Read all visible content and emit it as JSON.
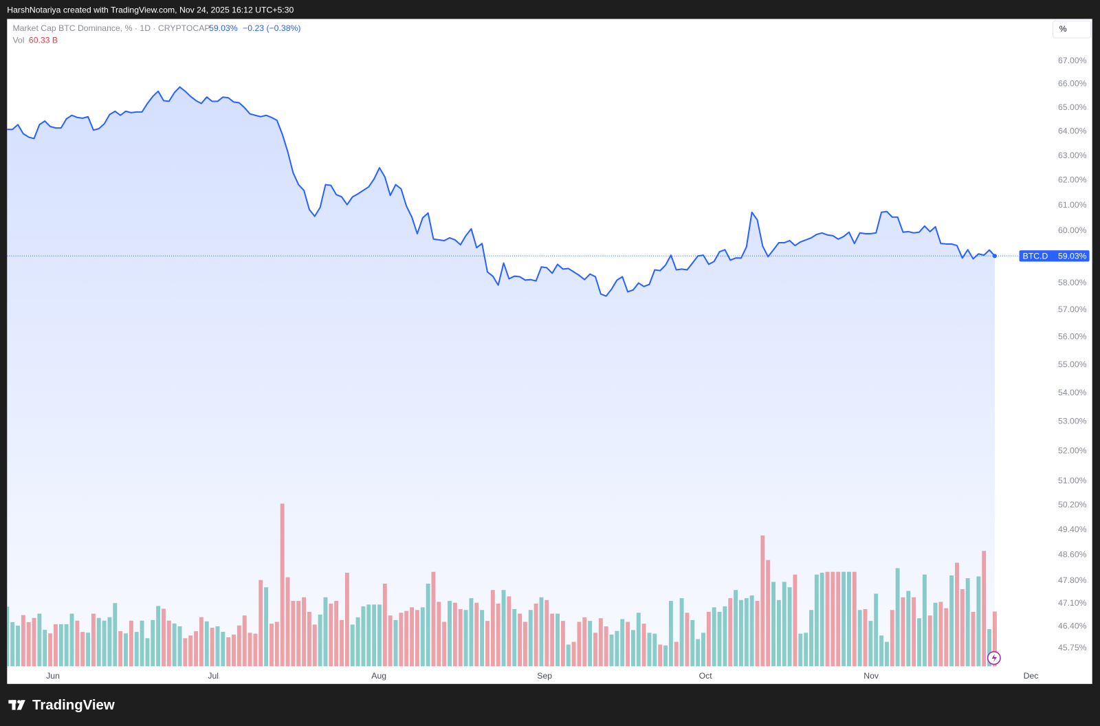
{
  "header": {
    "attribution": "HarshNotariya created with TradingView.com, Nov 24, 2025 16:12 UTC+5:30",
    "brand": "TradingView",
    "scale_button": "%"
  },
  "chart_data": {
    "type": "line",
    "title": "Market Cap BTC Dominance, % · 1D · CRYPTOCAP",
    "last_value_label": "59.03%",
    "change_label": "−0.23 (−0.38%)",
    "symbol": "BTC.D",
    "color": "#2962ff",
    "log_scale": true,
    "grid": false,
    "values": [
      64.09,
      64.09,
      64.29,
      63.91,
      63.77,
      63.71,
      64.29,
      64.44,
      64.21,
      64.15,
      64.15,
      64.53,
      64.68,
      64.59,
      64.56,
      64.62,
      64.06,
      64.12,
      64.32,
      64.71,
      64.85,
      64.68,
      64.85,
      64.79,
      64.82,
      64.82,
      65.18,
      65.48,
      65.7,
      65.3,
      65.27,
      65.64,
      65.88,
      65.7,
      65.48,
      65.3,
      65.18,
      65.45,
      65.27,
      65.27,
      65.45,
      65.42,
      65.24,
      65.21,
      65.0,
      64.74,
      64.68,
      64.62,
      64.68,
      64.59,
      64.47,
      63.89,
      63.17,
      62.31,
      61.83,
      61.6,
      60.84,
      60.57,
      60.92,
      61.83,
      61.8,
      61.43,
      61.34,
      61.03,
      61.34,
      61.46,
      61.6,
      61.74,
      62.06,
      62.51,
      62.14,
      61.4,
      61.83,
      61.66,
      60.97,
      60.54,
      59.89,
      60.51,
      60.7,
      59.68,
      59.65,
      59.62,
      59.73,
      59.65,
      59.46,
      59.81,
      60.08,
      59.35,
      59.51,
      58.42,
      58.26,
      57.92,
      58.76,
      58.16,
      58.26,
      58.24,
      58.11,
      58.13,
      58.08,
      58.61,
      58.58,
      58.37,
      58.71,
      58.53,
      58.55,
      58.42,
      58.29,
      58.13,
      58.34,
      58.24,
      57.59,
      57.51,
      57.77,
      58.11,
      58.24,
      57.67,
      57.74,
      58.0,
      57.87,
      57.95,
      58.5,
      58.47,
      58.68,
      59.06,
      58.5,
      58.53,
      58.5,
      58.76,
      59.03,
      59.06,
      58.71,
      58.82,
      59.19,
      59.27,
      58.87,
      58.95,
      58.95,
      59.38,
      60.73,
      60.43,
      59.41,
      59.0,
      59.27,
      59.54,
      59.54,
      59.62,
      59.43,
      59.57,
      59.65,
      59.73,
      59.86,
      59.92,
      59.84,
      59.81,
      59.68,
      59.78,
      59.95,
      59.51,
      59.92,
      59.89,
      59.89,
      59.92,
      60.73,
      60.76,
      60.54,
      60.54,
      59.95,
      59.97,
      59.92,
      59.95,
      60.19,
      59.97,
      60.16,
      59.51,
      59.49,
      59.49,
      59.43,
      58.95,
      59.27,
      58.92,
      59.11,
      59.06,
      59.26,
      59.03
    ],
    "xlim": [
      0,
      193
    ],
    "xticks": [
      {
        "value": 8.5,
        "label": "Jun"
      },
      {
        "value": 38.2,
        "label": "Jul"
      },
      {
        "value": 68.9,
        "label": "Aug"
      },
      {
        "value": 99.6,
        "label": "Sep"
      },
      {
        "value": 129.4,
        "label": "Oct"
      },
      {
        "value": 160.1,
        "label": "Nov"
      },
      {
        "value": 189.7,
        "label": "Dec"
      }
    ],
    "ylim": [
      45.21,
      68.86
    ],
    "yticks": [
      {
        "value": 67,
        "label": "67.00%"
      },
      {
        "value": 66,
        "label": "66.00%"
      },
      {
        "value": 65,
        "label": "65.00%"
      },
      {
        "value": 64,
        "label": "64.00%"
      },
      {
        "value": 63,
        "label": "63.00%"
      },
      {
        "value": 62,
        "label": "62.00%"
      },
      {
        "value": 61,
        "label": "61.00%"
      },
      {
        "value": 60,
        "label": "60.00%"
      },
      {
        "value": 58,
        "label": "58.00%"
      },
      {
        "value": 57,
        "label": "57.00%"
      },
      {
        "value": 56,
        "label": "56.00%"
      },
      {
        "value": 55,
        "label": "55.00%"
      },
      {
        "value": 54,
        "label": "54.00%"
      },
      {
        "value": 53,
        "label": "53.00%"
      },
      {
        "value": 52,
        "label": "52.00%"
      },
      {
        "value": 51,
        "label": "51.00%"
      },
      {
        "value": 50.2,
        "label": "50.20%"
      },
      {
        "value": 49.4,
        "label": "49.40%"
      },
      {
        "value": 48.6,
        "label": "48.60%"
      },
      {
        "value": 47.8,
        "label": "47.80%"
      },
      {
        "value": 47.1,
        "label": "47.10%"
      },
      {
        "value": 46.4,
        "label": "46.40%"
      },
      {
        "value": 45.75,
        "label": "45.75%"
      }
    ],
    "volume": {
      "name": "Vol",
      "value_label": "60.33 B",
      "up_color": "#8dd0c8",
      "down_color": "#f4a4a4",
      "values": [
        65.7,
        48.7,
        44.8,
        56.4,
        48.7,
        53.3,
        58.0,
        40.2,
        36.3,
        46.4,
        46.4,
        46.4,
        58.0,
        50.3,
        37.9,
        37.1,
        58.0,
        53.3,
        50.3,
        54.1,
        69.6,
        38.7,
        36.3,
        50.3,
        37.9,
        50.3,
        31.0,
        51.0,
        66.5,
        63.4,
        50.3,
        47.2,
        44.1,
        31.0,
        34.0,
        38.7,
        54.1,
        49.5,
        42.5,
        44.1,
        38,
        32,
        35,
        45,
        56,
        37,
        36,
        95,
        87,
        47,
        49,
        179,
        98,
        72,
        72,
        76,
        60,
        46,
        57,
        76,
        69,
        72,
        51,
        103,
        46,
        54,
        66,
        68,
        68,
        68,
        91,
        56,
        51,
        59,
        61,
        65,
        62,
        65,
        91,
        104,
        71,
        49,
        72,
        70,
        63,
        62,
        75,
        70,
        62,
        50,
        84,
        69,
        84,
        77,
        63,
        58,
        49,
        62,
        69,
        76,
        73,
        58,
        58,
        50,
        24,
        27,
        49,
        54,
        50,
        37,
        53,
        44,
        35,
        39,
        52,
        49,
        40,
        59,
        47,
        37,
        36,
        24,
        23,
        72,
        27,
        75,
        59,
        51,
        30,
        37,
        60,
        65,
        60,
        66,
        75,
        84,
        73,
        75,
        78,
        72,
        144,
        117,
        93,
        73,
        93,
        87,
        101,
        36,
        37,
        62,
        101,
        103,
        104,
        104,
        104,
        104,
        104,
        104,
        62,
        63,
        50,
        80,
        34,
        27,
        62,
        108,
        76,
        83,
        76,
        53,
        101,
        56,
        70,
        71,
        64,
        100,
        114,
        85,
        97,
        60,
        99,
        127,
        41,
        60.33
      ]
    }
  }
}
